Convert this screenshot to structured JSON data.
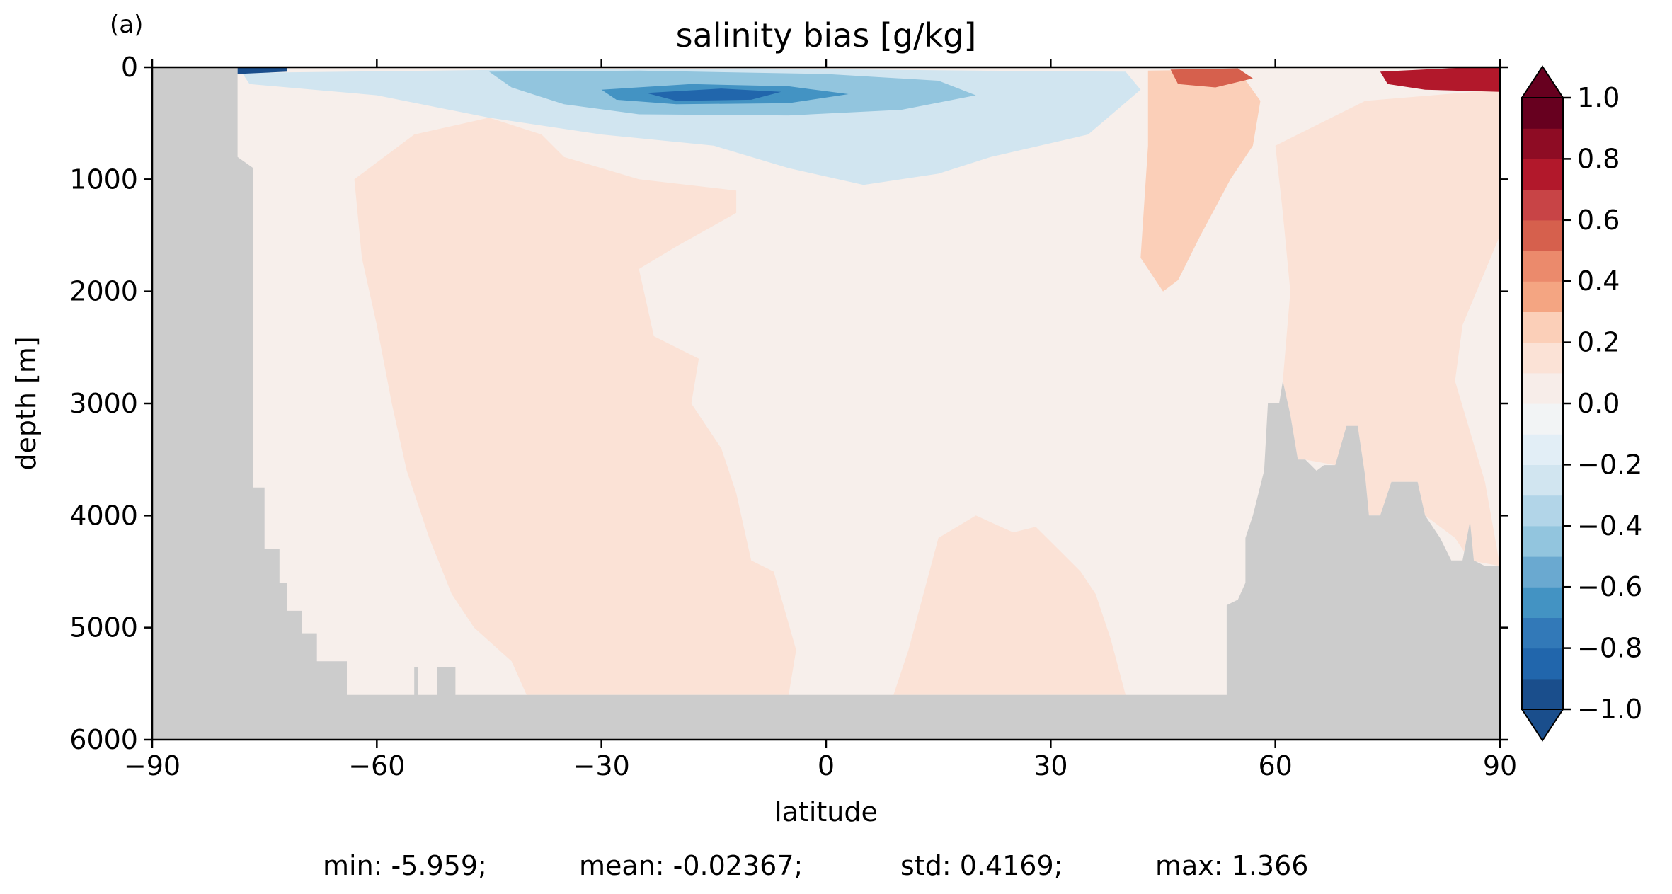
{
  "panel_label": "(a)",
  "chart_data": {
    "type": "heatmap",
    "title": "salinity bias [g/kg]",
    "xlabel": "latitude",
    "ylabel": "depth [m]",
    "xlim": [
      -90,
      90
    ],
    "ylim": [
      6000,
      0
    ],
    "xticks": [
      -90,
      -60,
      -30,
      0,
      30,
      60,
      90
    ],
    "xtick_labels": [
      "−90",
      "−60",
      "−30",
      "0",
      "30",
      "60",
      "90"
    ],
    "yticks": [
      0,
      1000,
      2000,
      3000,
      4000,
      5000,
      6000
    ],
    "ytick_labels": [
      "0",
      "1000",
      "2000",
      "3000",
      "4000",
      "5000",
      "6000"
    ],
    "colorbar": {
      "levels": [
        -1.0,
        -0.9,
        -0.8,
        -0.7,
        -0.6,
        -0.5,
        -0.4,
        -0.3,
        -0.2,
        -0.1,
        0.0,
        0.1,
        0.2,
        0.3,
        0.4,
        0.5,
        0.6,
        0.7,
        0.8,
        0.9,
        1.0
      ],
      "colors": [
        "#1a4e8c",
        "#2166ac",
        "#3279b8",
        "#4393c3",
        "#6aa9d0",
        "#92c5de",
        "#b2d5e8",
        "#d1e5f0",
        "#e2eef6",
        "#f2f4f5",
        "#f7ede9",
        "#fbe2d6",
        "#fbcfb8",
        "#f4a582",
        "#eb8a6c",
        "#d6604d",
        "#c84446",
        "#b2182b",
        "#8e0c24",
        "#67001f"
      ],
      "extend": "both",
      "ticks": [
        -1.0,
        -0.8,
        -0.6,
        -0.4,
        -0.2,
        0.0,
        0.2,
        0.4,
        0.6,
        0.8,
        1.0
      ],
      "tick_labels": [
        "−1.0",
        "−0.8",
        "−0.6",
        "−0.4",
        "−0.2",
        "0.0",
        "0.2",
        "0.4",
        "0.6",
        "0.8",
        "1.0"
      ]
    },
    "regions": [
      {
        "name": "land-mask",
        "color": "#cccccc",
        "polygon": [
          [
            -90,
            0
          ],
          [
            -78.6,
            0
          ],
          [
            -78.6,
            800
          ],
          [
            -76.5,
            900
          ],
          [
            -76.5,
            3750
          ],
          [
            -75,
            3750
          ],
          [
            -75,
            4300
          ],
          [
            -73,
            4300
          ],
          [
            -73,
            4600
          ],
          [
            -72,
            4600
          ],
          [
            -72,
            4850
          ],
          [
            -70,
            4850
          ],
          [
            -70,
            5050
          ],
          [
            -68,
            5050
          ],
          [
            -68,
            5300
          ],
          [
            -64,
            5300
          ],
          [
            -64,
            5600
          ],
          [
            -58,
            5600
          ],
          [
            -58,
            5600
          ],
          [
            -55,
            5600
          ],
          [
            -55,
            5350
          ],
          [
            -54.5,
            5350
          ],
          [
            -54.5,
            5600
          ],
          [
            -52,
            5600
          ],
          [
            -52,
            5350
          ],
          [
            -49.5,
            5350
          ],
          [
            -49.5,
            5600
          ],
          [
            53.5,
            5600
          ],
          [
            53.5,
            4800
          ],
          [
            55,
            4750
          ],
          [
            56,
            4600
          ],
          [
            56,
            4200
          ],
          [
            57,
            4000
          ],
          [
            58.5,
            3600
          ],
          [
            59,
            3000
          ],
          [
            60.5,
            3000
          ],
          [
            61,
            2800
          ],
          [
            62,
            3100
          ],
          [
            63,
            3500
          ],
          [
            64,
            3500
          ],
          [
            65.5,
            3600
          ],
          [
            66.5,
            3550
          ],
          [
            68,
            3550
          ],
          [
            69.5,
            3200
          ],
          [
            71,
            3200
          ],
          [
            72,
            3650
          ],
          [
            72.5,
            4000
          ],
          [
            74,
            4000
          ],
          [
            75.5,
            3700
          ],
          [
            79,
            3700
          ],
          [
            80,
            4000
          ],
          [
            82,
            4200
          ],
          [
            83.5,
            4400
          ],
          [
            85,
            4400
          ],
          [
            86,
            4050
          ],
          [
            86.5,
            4400
          ],
          [
            88,
            4450
          ],
          [
            90,
            4450
          ],
          [
            90,
            6000
          ],
          [
            -90,
            6000
          ]
        ]
      },
      {
        "name": "fresh-bias-upper",
        "color": "#d1e5f0",
        "polygon": [
          [
            -78,
            50
          ],
          [
            -40,
            20
          ],
          [
            -10,
            10
          ],
          [
            20,
            30
          ],
          [
            40,
            40
          ],
          [
            42,
            200
          ],
          [
            35,
            600
          ],
          [
            22,
            800
          ],
          [
            15,
            950
          ],
          [
            5,
            1050
          ],
          [
            -5,
            900
          ],
          [
            -15,
            700
          ],
          [
            -30,
            600
          ],
          [
            -45,
            450
          ],
          [
            -60,
            250
          ],
          [
            -77,
            150
          ]
        ]
      },
      {
        "name": "fresh-bias-core",
        "color": "#92c5de",
        "polygon": [
          [
            -45,
            40
          ],
          [
            -25,
            30
          ],
          [
            0,
            60
          ],
          [
            15,
            120
          ],
          [
            20,
            250
          ],
          [
            10,
            380
          ],
          [
            -5,
            430
          ],
          [
            -25,
            420
          ],
          [
            -35,
            330
          ],
          [
            -42,
            180
          ]
        ]
      },
      {
        "name": "fresh-bias-strong",
        "color": "#4393c3",
        "polygon": [
          [
            -30,
            200
          ],
          [
            -18,
            150
          ],
          [
            -5,
            170
          ],
          [
            3,
            240
          ],
          [
            -5,
            320
          ],
          [
            -20,
            330
          ],
          [
            -28,
            290
          ]
        ]
      },
      {
        "name": "fresh-bias-max",
        "color": "#2166ac",
        "polygon": [
          [
            -24,
            230
          ],
          [
            -14,
            190
          ],
          [
            -6,
            220
          ],
          [
            -10,
            290
          ],
          [
            -20,
            300
          ]
        ]
      },
      {
        "name": "fresh-bias-antarctic-surface",
        "color": "#1a4e8c",
        "polygon": [
          [
            -78.6,
            0
          ],
          [
            -72,
            0
          ],
          [
            -72,
            40
          ],
          [
            -78.6,
            60
          ]
        ]
      },
      {
        "name": "salty-bias-deep-south",
        "color": "#fbe2d6",
        "polygon": [
          [
            -63,
            1000
          ],
          [
            -55,
            600
          ],
          [
            -45,
            450
          ],
          [
            -38,
            600
          ],
          [
            -35,
            800
          ],
          [
            -25,
            1000
          ],
          [
            -12,
            1100
          ],
          [
            -12,
            1300
          ],
          [
            -20,
            1600
          ],
          [
            -25,
            1800
          ],
          [
            -23,
            2400
          ],
          [
            -17,
            2600
          ],
          [
            -18,
            3000
          ],
          [
            -14,
            3400
          ],
          [
            -12,
            3800
          ],
          [
            -10,
            4400
          ],
          [
            -7,
            4500
          ],
          [
            -4,
            5200
          ],
          [
            -5,
            5600
          ],
          [
            -40,
            5600
          ],
          [
            -42,
            5300
          ],
          [
            -47,
            5000
          ],
          [
            -50,
            4700
          ],
          [
            -53,
            4200
          ],
          [
            -56,
            3600
          ],
          [
            -58,
            3000
          ],
          [
            -60,
            2300
          ],
          [
            -62,
            1700
          ]
        ]
      },
      {
        "name": "salty-bias-mid-north",
        "color": "#fbe2d6",
        "polygon": [
          [
            15,
            4200
          ],
          [
            20,
            4000
          ],
          [
            25,
            4150
          ],
          [
            28,
            4100
          ],
          [
            31,
            4300
          ],
          [
            34,
            4500
          ],
          [
            36,
            4700
          ],
          [
            38,
            5100
          ],
          [
            40,
            5600
          ],
          [
            9,
            5600
          ],
          [
            11,
            5200
          ],
          [
            13,
            4700
          ]
        ]
      },
      {
        "name": "salty-bias-north-upper",
        "color": "#fbcfb8",
        "polygon": [
          [
            43,
            30
          ],
          [
            55,
            20
          ],
          [
            58,
            300
          ],
          [
            57,
            700
          ],
          [
            54,
            1000
          ],
          [
            50,
            1500
          ],
          [
            47,
            1900
          ],
          [
            45,
            2000
          ],
          [
            42,
            1700
          ],
          [
            43,
            700
          ]
        ]
      },
      {
        "name": "salty-bias-north-deep",
        "color": "#fbe2d6",
        "polygon": [
          [
            60,
            700
          ],
          [
            72,
            300
          ],
          [
            90,
            200
          ],
          [
            90,
            1500
          ],
          [
            85,
            2300
          ],
          [
            84,
            2800
          ],
          [
            88,
            3700
          ],
          [
            90,
            4450
          ],
          [
            86,
            4400
          ],
          [
            84,
            4200
          ],
          [
            80,
            4000
          ],
          [
            79,
            3700
          ],
          [
            75.5,
            3700
          ],
          [
            74,
            4000
          ],
          [
            72.5,
            4000
          ],
          [
            72,
            3650
          ],
          [
            71,
            3200
          ],
          [
            68,
            3550
          ],
          [
            64,
            3500
          ],
          [
            63,
            3500
          ],
          [
            62,
            3100
          ],
          [
            61,
            2800
          ],
          [
            62,
            2000
          ],
          [
            61,
            1300
          ]
        ]
      },
      {
        "name": "salty-bias-north-surface",
        "color": "#d6604d",
        "polygon": [
          [
            46,
            20
          ],
          [
            55,
            10
          ],
          [
            57,
            100
          ],
          [
            52,
            180
          ],
          [
            47,
            150
          ]
        ]
      },
      {
        "name": "salty-bias-arctic-surface",
        "color": "#b2182b",
        "polygon": [
          [
            74,
            40
          ],
          [
            86,
            0
          ],
          [
            90,
            0
          ],
          [
            90,
            220
          ],
          [
            80,
            200
          ],
          [
            75,
            150
          ]
        ]
      }
    ],
    "stats": [
      "min: -5.959;",
      "mean: -0.02367;",
      "std: 0.4169;",
      "max: 1.366"
    ]
  }
}
